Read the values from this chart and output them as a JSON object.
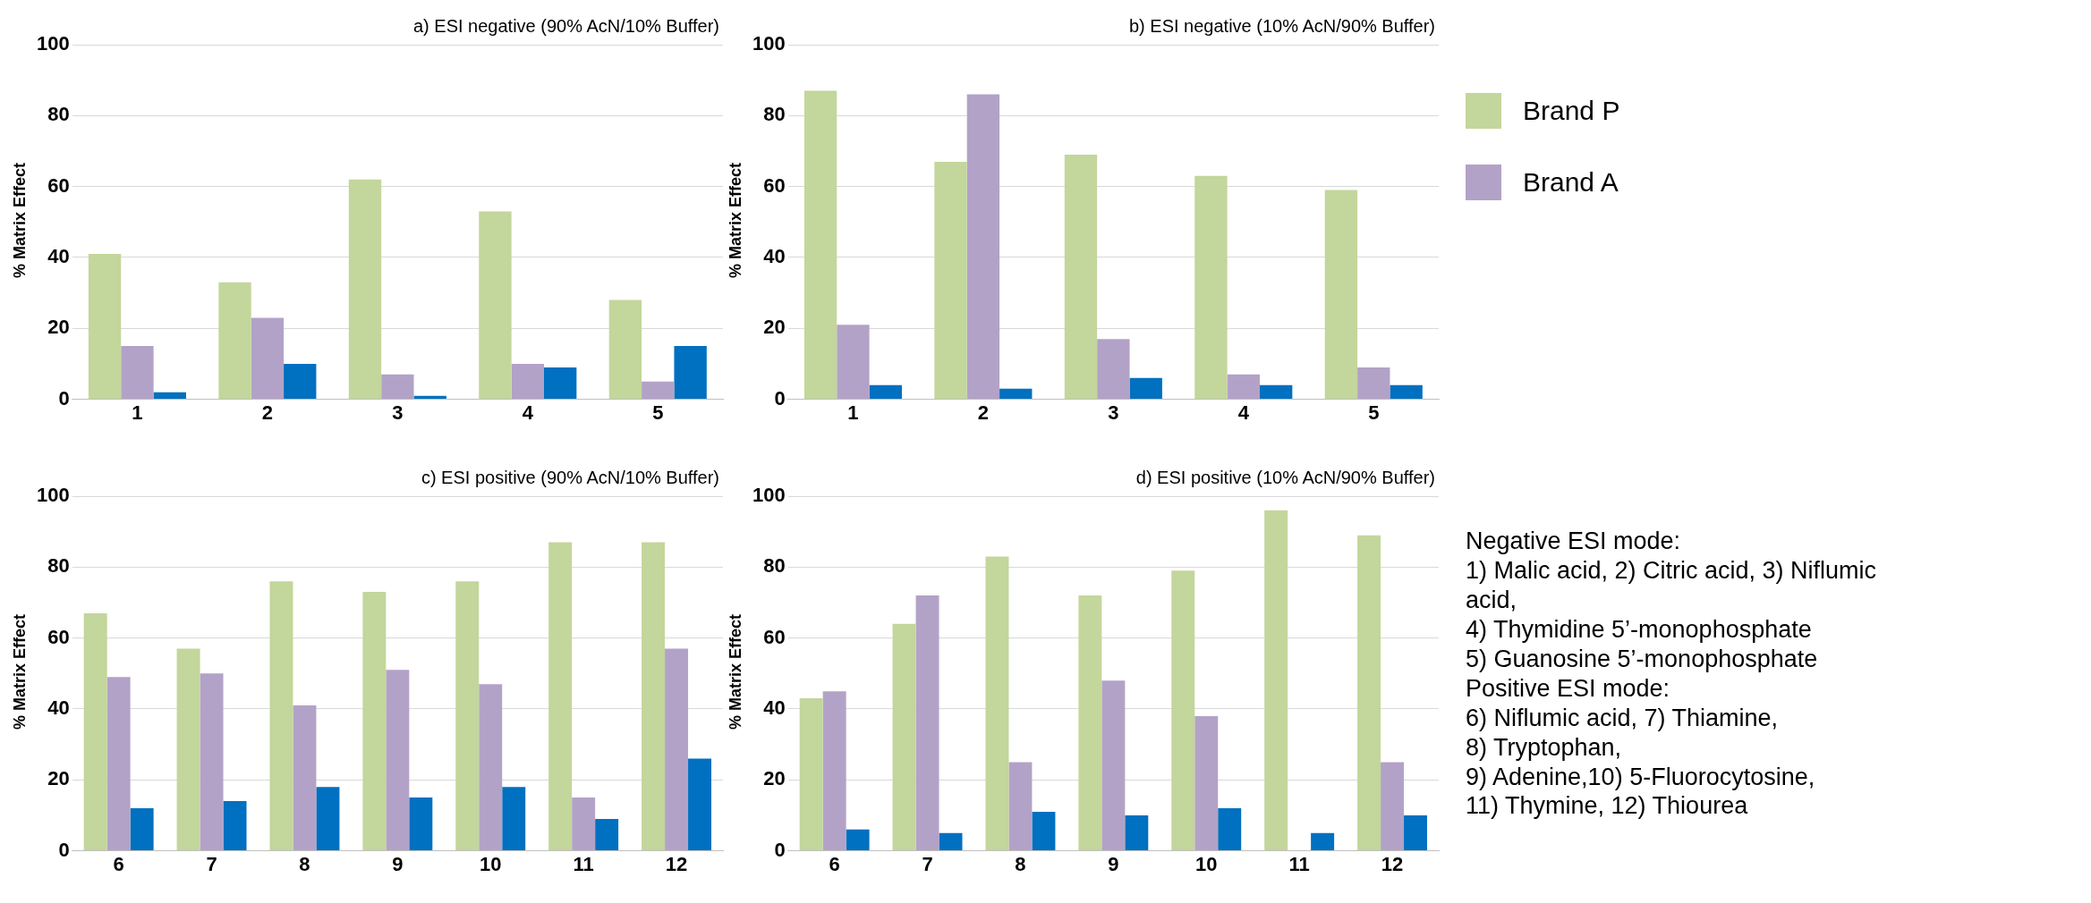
{
  "chart_data": [
    {
      "type": "bar",
      "title": "a) ESI negative (90% AcN/10% Buffer)",
      "ylabel": "% Matrix Effect",
      "categories": [
        "1",
        "2",
        "3",
        "4",
        "5"
      ],
      "series": [
        {
          "color": "#c3d69b",
          "values": [
            41,
            33,
            62,
            53,
            28
          ]
        },
        {
          "color": "#b3a2c7",
          "values": [
            15,
            23,
            7,
            10,
            5
          ]
        },
        {
          "color": "#0070c0",
          "values": [
            2,
            10,
            1,
            9,
            15
          ]
        }
      ],
      "ylim": [
        0,
        100
      ],
      "yticks": [
        0,
        20,
        40,
        60,
        80,
        100
      ],
      "grid": "y",
      "legend": false
    },
    {
      "type": "bar",
      "title": "b) ESI negative (10% AcN/90% Buffer)",
      "ylabel": "% Matrix Effect",
      "categories": [
        "1",
        "2",
        "3",
        "4",
        "5"
      ],
      "series": [
        {
          "name": "Brand P",
          "color": "#c3d69b",
          "values": [
            87,
            67,
            69,
            63,
            59
          ]
        },
        {
          "name": "Brand A",
          "color": "#b3a2c7",
          "values": [
            21,
            86,
            17,
            7,
            9
          ]
        },
        {
          "color": "#0070c0",
          "values": [
            4,
            3,
            6,
            4,
            4
          ]
        }
      ],
      "ylim": [
        0,
        100
      ],
      "yticks": [
        0,
        20,
        40,
        60,
        80,
        100
      ],
      "grid": "y",
      "legend": "right"
    },
    {
      "type": "bar",
      "title": "c) ESI positive (90% AcN/10% Buffer)",
      "ylabel": "% Matrix Effect",
      "categories": [
        "6",
        "7",
        "8",
        "9",
        "10",
        "11",
        "12"
      ],
      "series": [
        {
          "color": "#c3d69b",
          "values": [
            67,
            57,
            76,
            73,
            76,
            87,
            87
          ]
        },
        {
          "color": "#b3a2c7",
          "values": [
            49,
            50,
            41,
            51,
            47,
            15,
            57
          ]
        },
        {
          "color": "#0070c0",
          "values": [
            12,
            14,
            18,
            15,
            18,
            9,
            26
          ]
        }
      ],
      "ylim": [
        0,
        100
      ],
      "yticks": [
        0,
        20,
        40,
        60,
        80,
        100
      ],
      "grid": "y",
      "legend": false
    },
    {
      "type": "bar",
      "title": "d) ESI positive (10% AcN/90% Buffer)",
      "ylabel": "% Matrix Effect",
      "categories": [
        "6",
        "7",
        "8",
        "9",
        "10",
        "11",
        "12"
      ],
      "series": [
        {
          "color": "#c3d69b",
          "values": [
            43,
            64,
            83,
            72,
            79,
            96,
            89
          ]
        },
        {
          "color": "#b3a2c7",
          "values": [
            45,
            72,
            25,
            48,
            38,
            0,
            25
          ]
        },
        {
          "color": "#0070c0",
          "values": [
            6,
            5,
            11,
            10,
            12,
            5,
            10
          ]
        }
      ],
      "ylim": [
        0,
        100
      ],
      "yticks": [
        0,
        20,
        40,
        60,
        80,
        100
      ],
      "grid": "y",
      "legend": false,
      "annotations": [
        "Negative ESI mode:",
        "1) Malic acid, 2) Citric acid, 3) Niflumic acid,",
        "4) Thymidine 5’-monophosphate",
        "5) Guanosine 5’-monophosphate",
        "Positive ESI mode:",
        "6) Niflumic acid, 7) Thiamine,",
        "8) Tryptophan,",
        "9) Adenine,10) 5-Fluorocytosine,",
        "11) Thymine, 12) Thiourea"
      ]
    }
  ]
}
